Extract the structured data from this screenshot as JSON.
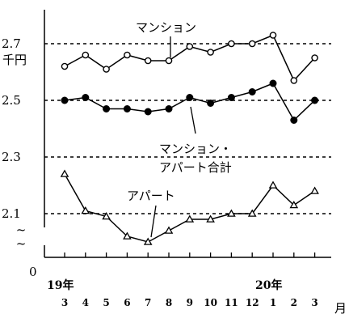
{
  "chart_data": {
    "type": "line",
    "title": "",
    "xlabel": "月",
    "ylabel": "千円",
    "y_axis_break": "~\n~",
    "y_zero_label": "0",
    "y_tick_labels": [
      "2.1",
      "2.3",
      "2.5",
      "2.7"
    ],
    "y_ticks": [
      2.1,
      2.3,
      2.5,
      2.7
    ],
    "ylim": [
      2.0,
      2.82
    ],
    "grid": "dotted horizontal lines at 2.1, 2.3, 2.5, 2.7",
    "x_categories": [
      "3",
      "4",
      "5",
      "6",
      "7",
      "8",
      "9",
      "10",
      "11",
      "12",
      "1",
      "2",
      "3"
    ],
    "year_labels": [
      {
        "text": "19年",
        "category_index": 0
      },
      {
        "text": "20年",
        "category_index": 10
      }
    ],
    "series": [
      {
        "name": "マンション",
        "marker": "open-circle",
        "values": [
          2.62,
          2.66,
          2.61,
          2.66,
          2.64,
          2.64,
          2.69,
          2.67,
          2.7,
          2.7,
          2.73,
          2.57,
          2.65
        ]
      },
      {
        "name": "マンション・アパート合計",
        "name_lines": [
          "マンション・",
          "アパート合計"
        ],
        "marker": "filled-circle",
        "values": [
          2.5,
          2.51,
          2.47,
          2.47,
          2.46,
          2.47,
          2.51,
          2.49,
          2.51,
          2.53,
          2.56,
          2.43,
          2.5
        ]
      },
      {
        "name": "アパート",
        "marker": "open-triangle",
        "values": [
          2.24,
          2.11,
          2.09,
          2.02,
          2.0,
          2.04,
          2.08,
          2.08,
          2.1,
          2.1,
          2.2,
          2.13,
          2.18
        ]
      }
    ]
  }
}
